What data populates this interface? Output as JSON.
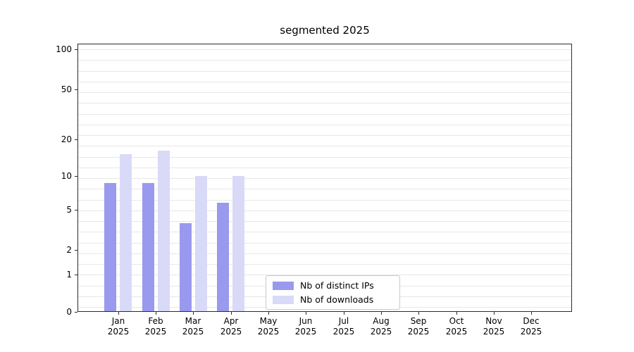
{
  "chart_data": {
    "type": "bar",
    "title": "segmented 2025",
    "x_categories": [
      "Jan",
      "Feb",
      "Mar",
      "Apr",
      "May",
      "Jun",
      "Jul",
      "Aug",
      "Sep",
      "Oct",
      "Nov",
      "Dec"
    ],
    "x_year": "2025",
    "series": [
      {
        "name": "Nb of distinct IPs",
        "color": "#9999ee",
        "values": [
          9,
          9,
          4,
          6,
          0,
          0,
          0,
          0,
          0,
          0,
          0,
          0
        ]
      },
      {
        "name": "Nb of downloads",
        "color": "#d9d9f8",
        "values": [
          16,
          17,
          10,
          10,
          0,
          0,
          0,
          0,
          0,
          0,
          0,
          0
        ]
      }
    ],
    "y_ticks": [
      0,
      1,
      2,
      5,
      10,
      20,
      50,
      100
    ],
    "ylim": [
      0,
      105
    ],
    "yscale": "symlog",
    "grid": "horizontal",
    "legend": {
      "labels": [
        "Nb of distinct IPs",
        "Nb of downloads"
      ],
      "position": "inside-lower-center"
    }
  }
}
